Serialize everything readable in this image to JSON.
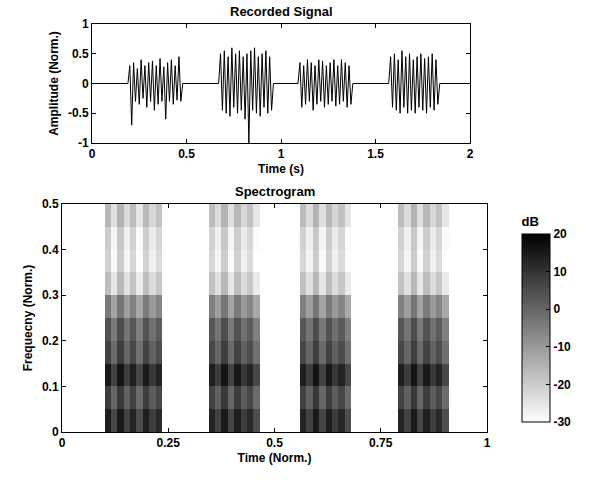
{
  "chart_data": [
    {
      "type": "line",
      "title": "Recorded Signal",
      "x_label": "Time (s)",
      "y_label": "Amplitude (Norm.)",
      "color": "#000000",
      "grid": false,
      "xlim": [
        0,
        2
      ],
      "xticks": [
        0,
        0.5,
        1,
        1.5,
        2
      ],
      "ylim": [
        -1,
        1
      ],
      "yticks": [
        -1,
        -0.5,
        0,
        0.5,
        1
      ],
      "x": [
        0,
        0.19,
        0.2,
        0.21,
        0.22,
        0.23,
        0.24,
        0.25,
        0.26,
        0.27,
        0.28,
        0.29,
        0.3,
        0.31,
        0.32,
        0.33,
        0.34,
        0.35,
        0.36,
        0.37,
        0.38,
        0.39,
        0.4,
        0.41,
        0.42,
        0.43,
        0.44,
        0.45,
        0.46,
        0.47,
        0.48,
        0.67,
        0.68,
        0.69,
        0.7,
        0.71,
        0.72,
        0.73,
        0.74,
        0.75,
        0.76,
        0.77,
        0.78,
        0.79,
        0.8,
        0.81,
        0.82,
        0.83,
        0.84,
        0.85,
        0.86,
        0.87,
        0.88,
        0.89,
        0.9,
        0.91,
        0.92,
        0.93,
        0.94,
        0.95,
        0.96,
        1.09,
        1.1,
        1.11,
        1.12,
        1.13,
        1.14,
        1.15,
        1.16,
        1.17,
        1.18,
        1.19,
        1.2,
        1.21,
        1.22,
        1.23,
        1.24,
        1.25,
        1.26,
        1.27,
        1.28,
        1.29,
        1.3,
        1.31,
        1.32,
        1.33,
        1.34,
        1.35,
        1.36,
        1.37,
        1.38,
        1.57,
        1.58,
        1.59,
        1.6,
        1.61,
        1.62,
        1.63,
        1.64,
        1.65,
        1.66,
        1.67,
        1.68,
        1.69,
        1.7,
        1.71,
        1.72,
        1.73,
        1.74,
        1.75,
        1.76,
        1.77,
        1.78,
        1.79,
        1.8,
        1.81,
        1.82,
        1.83,
        1.84,
        2
      ],
      "values": [
        0,
        0,
        0.3,
        -0.7,
        0.35,
        -0.3,
        0.25,
        -0.35,
        0.4,
        -0.25,
        0.3,
        -0.4,
        0.35,
        -0.3,
        0.38,
        -0.45,
        0.3,
        -0.35,
        0.42,
        -0.3,
        0.28,
        -0.6,
        0.35,
        -0.3,
        0.4,
        -0.35,
        0.3,
        -0.28,
        0.45,
        -0.3,
        0,
        0,
        0.5,
        -0.45,
        0.55,
        -0.5,
        0.45,
        -0.55,
        0.6,
        -0.4,
        0.5,
        -0.5,
        0.55,
        -0.45,
        0.45,
        -0.6,
        0.5,
        -1,
        0.55,
        -0.45,
        0.6,
        -0.5,
        0.45,
        -0.55,
        0.5,
        -0.4,
        0.55,
        -0.5,
        0.45,
        -0.45,
        0,
        0,
        0.35,
        -0.4,
        0.3,
        -0.35,
        0.4,
        -0.3,
        0.35,
        -0.45,
        0.3,
        -0.35,
        0.4,
        -0.3,
        0.38,
        -0.4,
        0.3,
        -0.35,
        0.35,
        -0.3,
        0.4,
        -0.38,
        0.3,
        -0.35,
        0.4,
        -0.3,
        0.35,
        -0.4,
        0.3,
        -0.35,
        0,
        0,
        0.45,
        -0.4,
        0.5,
        -0.45,
        0.4,
        -0.5,
        0.55,
        -0.4,
        0.45,
        -0.5,
        0.5,
        -0.45,
        0.4,
        -0.5,
        0.45,
        -0.4,
        0.5,
        -0.45,
        0.42,
        -0.5,
        0.45,
        -0.4,
        0.5,
        -0.45,
        0.4,
        -0.35,
        0,
        0
      ]
    },
    {
      "type": "heatmap",
      "title": "Spectrogram",
      "x_label": "Time (Norm.)",
      "y_label": "Frequecny (Norm.)",
      "grid": false,
      "xlim": [
        0,
        1
      ],
      "xticks": [
        0,
        0.25,
        0.5,
        0.75,
        1
      ],
      "ylim": [
        0,
        0.5
      ],
      "yticks": [
        0,
        0.1,
        0.2,
        0.3,
        0.4,
        0.5
      ],
      "colorbar_title": "dB",
      "zlim": [
        -30,
        20
      ],
      "zticks": [
        -30,
        -20,
        -10,
        0,
        10,
        20
      ],
      "x_edges": [
        0,
        0.1,
        0.115,
        0.13,
        0.145,
        0.16,
        0.175,
        0.19,
        0.205,
        0.22,
        0.235,
        0.345,
        0.36,
        0.375,
        0.39,
        0.405,
        0.42,
        0.435,
        0.45,
        0.465,
        0.56,
        0.575,
        0.59,
        0.605,
        0.62,
        0.635,
        0.65,
        0.665,
        0.68,
        0.79,
        0.805,
        0.82,
        0.835,
        0.85,
        0.865,
        0.88,
        0.895,
        0.91,
        1
      ],
      "y_edges": [
        0,
        0.05,
        0.1,
        0.15,
        0.2,
        0.25,
        0.3,
        0.35,
        0.4,
        0.45,
        0.5
      ],
      "z": [
        [
          -30,
          14,
          6,
          15,
          7,
          13,
          5,
          14,
          8,
          12,
          -30,
          13,
          7,
          15,
          6,
          14,
          8,
          12,
          5,
          -30,
          13,
          7,
          15,
          6,
          14,
          8,
          12,
          5,
          -30,
          13,
          7,
          15,
          6,
          14,
          8,
          12,
          5,
          -30
        ],
        [
          -30,
          8,
          0,
          9,
          1,
          7,
          -1,
          8,
          2,
          6,
          -30,
          7,
          1,
          9,
          0,
          8,
          2,
          6,
          -1,
          -30,
          7,
          1,
          9,
          0,
          8,
          2,
          6,
          -1,
          -30,
          7,
          1,
          9,
          0,
          8,
          2,
          6,
          -1,
          -30
        ],
        [
          -30,
          15,
          7,
          16,
          8,
          14,
          6,
          15,
          9,
          13,
          -30,
          14,
          8,
          16,
          7,
          15,
          9,
          13,
          6,
          -30,
          14,
          8,
          16,
          7,
          15,
          9,
          13,
          6,
          -30,
          14,
          8,
          16,
          7,
          15,
          9,
          13,
          6,
          -30
        ],
        [
          -30,
          7,
          -1,
          8,
          0,
          6,
          -2,
          7,
          1,
          5,
          -30,
          6,
          0,
          8,
          -1,
          7,
          1,
          5,
          -2,
          -30,
          6,
          0,
          8,
          -1,
          7,
          1,
          5,
          -2,
          -30,
          6,
          0,
          8,
          -1,
          7,
          1,
          5,
          -2,
          -30
        ],
        [
          -30,
          4,
          -4,
          5,
          -3,
          3,
          -5,
          4,
          -2,
          2,
          -30,
          3,
          -3,
          5,
          -4,
          4,
          -2,
          2,
          -5,
          -30,
          3,
          -3,
          5,
          -4,
          4,
          -2,
          2,
          -5,
          -30,
          3,
          -3,
          5,
          -4,
          4,
          -2,
          2,
          -5,
          -30
        ],
        [
          -30,
          -4,
          -12,
          -3,
          -11,
          -5,
          -13,
          -4,
          -10,
          -6,
          -30,
          -5,
          -11,
          -3,
          -12,
          -4,
          -10,
          -6,
          -13,
          -30,
          -5,
          -11,
          -3,
          -12,
          -4,
          -10,
          -6,
          -13,
          -30,
          -5,
          -11,
          -3,
          -12,
          -4,
          -10,
          -6,
          -13,
          -30
        ],
        [
          -30,
          -17,
          -25,
          -16,
          -24,
          -18,
          -26,
          -17,
          -23,
          -19,
          -30,
          -18,
          -24,
          -16,
          -25,
          -17,
          -23,
          -19,
          -26,
          -30,
          -18,
          -24,
          -16,
          -25,
          -17,
          -23,
          -19,
          -26,
          -30,
          -18,
          -24,
          -16,
          -25,
          -17,
          -23,
          -19,
          -26,
          -30
        ],
        [
          -30,
          -21,
          -29,
          -20,
          -28,
          -22,
          -30,
          -21,
          -27,
          -23,
          -30,
          -22,
          -28,
          -20,
          -29,
          -21,
          -27,
          -23,
          -30,
          -30,
          -22,
          -28,
          -20,
          -29,
          -21,
          -27,
          -23,
          -30,
          -30,
          -22,
          -28,
          -20,
          -29,
          -21,
          -27,
          -23,
          -30,
          -30
        ],
        [
          -30,
          -20,
          -28,
          -19,
          -27,
          -21,
          -29,
          -20,
          -26,
          -22,
          -30,
          -21,
          -27,
          -19,
          -28,
          -20,
          -26,
          -22,
          -29,
          -30,
          -21,
          -27,
          -19,
          -28,
          -20,
          -26,
          -22,
          -29,
          -30,
          -21,
          -27,
          -19,
          -28,
          -20,
          -26,
          -22,
          -29,
          -30
        ],
        [
          -30,
          -16,
          -24,
          -15,
          -23,
          -17,
          -25,
          -16,
          -22,
          -18,
          -30,
          -17,
          -23,
          -15,
          -24,
          -16,
          -22,
          -18,
          -25,
          -30,
          -17,
          -23,
          -15,
          -24,
          -16,
          -22,
          -18,
          -25,
          -30,
          -17,
          -23,
          -15,
          -24,
          -16,
          -22,
          -18,
          -25,
          -30
        ]
      ]
    }
  ]
}
